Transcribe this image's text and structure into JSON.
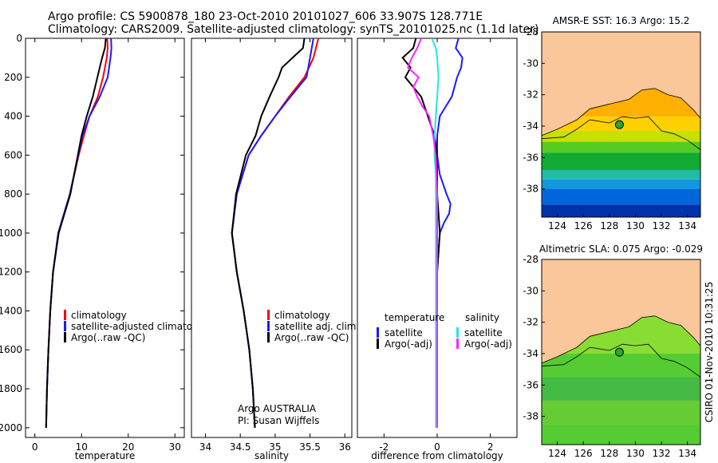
{
  "header": {
    "line1": "Argo profile: CS 5900878_180 23-Oct-2010 20101027_606 33.907S 128.771E",
    "line2": "Climatology: CARS2009. Satellite-adjusted climatology: synTS_20101025.nc (1.1d later)"
  },
  "footer_stamp": "CSIRO 01-Nov-2010 10:31:25",
  "colors": {
    "climatology": "#ff0000",
    "satellite": "#1a1aff",
    "argo": "#000000",
    "salinity_satellite": "#22e5e5",
    "salinity_argo": "#ff22ff",
    "land": "#f9c79a",
    "marker": "#22aa33"
  },
  "chart_data": [
    {
      "type": "line",
      "xlabel": "temperature",
      "ylabel": "",
      "xlim": [
        -2,
        32
      ],
      "ylim": [
        2050,
        0
      ],
      "xticks": [
        0,
        10,
        20,
        30
      ],
      "yticks": [
        0,
        200,
        400,
        600,
        800,
        1000,
        1200,
        1400,
        1600,
        1800,
        2000
      ],
      "legend_position": "bottom-right",
      "annotation": "",
      "series": [
        {
          "name": "climatology",
          "color": "#ff0000",
          "y": [
            0,
            50,
            100,
            200,
            300,
            400,
            500,
            600,
            800,
            1000,
            1200,
            1400,
            1600,
            1800,
            2000
          ],
          "x": [
            15.5,
            15.6,
            15.4,
            14.6,
            13.5,
            11.7,
            10.5,
            9.4,
            7.5,
            5.0,
            3.9,
            3.3,
            2.9,
            2.6,
            2.4
          ]
        },
        {
          "name": "satellite-adjusted climatology",
          "color": "#1a1aff",
          "y": [
            0,
            50,
            100,
            200,
            300,
            400,
            500,
            600,
            800,
            1000,
            1200,
            1400,
            1600,
            1800,
            2000
          ],
          "x": [
            16.3,
            16.4,
            16.2,
            15.6,
            13.9,
            11.7,
            10.2,
            9.3,
            7.5,
            5.0,
            3.9,
            3.3,
            2.9,
            2.6,
            2.4
          ]
        },
        {
          "name": "Argo(..raw -QC)",
          "color": "#000000",
          "y": [
            0,
            50,
            100,
            200,
            300,
            400,
            500,
            600,
            800,
            1000,
            1200,
            1400,
            1600,
            1800,
            2000
          ],
          "x": [
            15.2,
            15.0,
            14.4,
            13.4,
            12.4,
            11.1,
            10.0,
            9.2,
            7.6,
            5.1,
            3.9,
            3.3,
            2.9,
            2.6,
            2.4
          ]
        }
      ]
    },
    {
      "type": "line",
      "xlabel": "salinity",
      "ylabel": "",
      "xlim": [
        33.8,
        36.1
      ],
      "ylim": [
        2050,
        0
      ],
      "xticks": [
        34,
        34.5,
        35,
        35.5,
        36
      ],
      "yticks": [],
      "legend_position": "bottom-right",
      "annotation_lines": [
        "Argo AUSTRALIA",
        "PI: Susan Wijffels"
      ],
      "series": [
        {
          "name": "climatology",
          "color": "#ff0000",
          "y": [
            0,
            100,
            200,
            300,
            400,
            500,
            600,
            800,
            1000,
            1200,
            1400,
            1600,
            1800,
            2000
          ],
          "x": [
            35.62,
            35.55,
            35.42,
            35.2,
            35.0,
            34.8,
            34.62,
            34.45,
            34.38,
            34.45,
            34.55,
            34.63,
            34.68,
            34.71
          ]
        },
        {
          "name": "satellite adj. clim.",
          "color": "#1a1aff",
          "y": [
            0,
            100,
            200,
            300,
            400,
            500,
            600,
            800,
            1000,
            1200,
            1400,
            1600,
            1800,
            2000
          ],
          "x": [
            35.55,
            35.5,
            35.45,
            35.22,
            35.0,
            34.8,
            34.62,
            34.45,
            34.38,
            34.45,
            34.55,
            34.63,
            34.68,
            34.71
          ]
        },
        {
          "name": "Argo(..raw -QC)",
          "color": "#000000",
          "y": [
            0,
            50,
            100,
            150,
            200,
            300,
            400,
            500,
            600,
            800,
            1000,
            1200,
            1400,
            1600,
            1800,
            2000
          ],
          "x": [
            35.42,
            35.4,
            35.25,
            35.1,
            35.05,
            34.92,
            34.8,
            34.72,
            34.58,
            34.44,
            34.38,
            34.45,
            34.55,
            34.63,
            34.68,
            34.71
          ]
        }
      ]
    },
    {
      "type": "line",
      "xlabel": "difference from climatology",
      "ylabel": "",
      "xlim": [
        -3,
        3
      ],
      "ylim": [
        2050,
        0
      ],
      "xticks": [
        -2,
        0,
        2
      ],
      "yticks": [],
      "legend_position": "bottom",
      "legend_groups": [
        "temperature",
        "salinity"
      ],
      "series": [
        {
          "name": "satellite",
          "group": "temperature",
          "color": "#1a1aff",
          "y": [
            0,
            50,
            100,
            150,
            200,
            300,
            400,
            500,
            600,
            700,
            800,
            850,
            900,
            950,
            1000,
            1200,
            1400,
            1600,
            1800,
            2000
          ],
          "x": [
            0.8,
            0.7,
            0.95,
            0.9,
            0.75,
            0.55,
            0.1,
            0.0,
            0.0,
            0.1,
            0.35,
            0.5,
            0.45,
            0.25,
            0.1,
            0.0,
            0.0,
            0.0,
            0.0,
            0.0
          ]
        },
        {
          "name": "Argo(-adj)",
          "group": "temperature",
          "color": "#000000",
          "y": [
            0,
            50,
            100,
            150,
            200,
            250,
            300,
            400,
            500,
            600,
            700,
            800,
            900,
            1000,
            1200,
            1400,
            1600,
            1800,
            2000
          ],
          "x": [
            -0.8,
            -0.9,
            -1.3,
            -1.0,
            -1.2,
            -0.9,
            -0.6,
            -0.35,
            -0.1,
            0.0,
            0.0,
            0.0,
            0.05,
            0.1,
            0.0,
            0.0,
            0.0,
            0.0,
            0.0
          ]
        },
        {
          "name": "satellite",
          "group": "salinity",
          "color": "#22e5e5",
          "y": [
            0,
            50,
            100,
            200,
            300,
            400,
            500,
            600,
            700,
            800,
            900,
            1000,
            1200,
            1400,
            1600,
            1800,
            2000
          ],
          "x": [
            -0.2,
            -0.05,
            0.0,
            0.05,
            0.0,
            -0.05,
            -0.1,
            -0.1,
            -0.05,
            -0.05,
            -0.05,
            -0.05,
            -0.05,
            -0.05,
            -0.05,
            -0.05,
            -0.05
          ]
        },
        {
          "name": "Argo(-adj)",
          "group": "salinity",
          "color": "#ff22ff",
          "y": [
            0,
            50,
            100,
            150,
            200,
            250,
            300,
            350,
            400,
            500,
            600,
            800,
            1000,
            1200,
            1400,
            1600,
            1800,
            2000
          ],
          "x": [
            -0.6,
            -0.75,
            -0.95,
            -1.1,
            -0.7,
            -0.9,
            -0.75,
            -0.55,
            -0.3,
            -0.15,
            -0.05,
            0.0,
            0.0,
            0.0,
            0.0,
            0.0,
            0.0,
            0.0
          ]
        }
      ]
    },
    {
      "type": "heatmap",
      "title": "AMSR-E SST: 16.3 Argo: 15.2",
      "xlim": [
        122.8,
        135.0
      ],
      "ylim": [
        -39.8,
        -28.0
      ],
      "xticks": [
        124,
        126,
        128,
        130,
        132,
        134
      ],
      "yticks": [
        -28,
        -30,
        -32,
        -34,
        -36,
        -38
      ],
      "coastline": [
        [
          122.8,
          -34.6
        ],
        [
          124.0,
          -34.2
        ],
        [
          125.5,
          -33.6
        ],
        [
          126.5,
          -32.9
        ],
        [
          128.0,
          -32.6
        ],
        [
          129.5,
          -32.3
        ],
        [
          130.5,
          -31.7
        ],
        [
          131.5,
          -31.6
        ],
        [
          132.5,
          -32.0
        ],
        [
          133.5,
          -32.2
        ],
        [
          134.5,
          -33.0
        ],
        [
          135.0,
          -33.5
        ]
      ],
      "contour": [
        [
          122.8,
          -34.8
        ],
        [
          124.5,
          -34.7
        ],
        [
          125.5,
          -34.2
        ],
        [
          126.5,
          -33.6
        ],
        [
          128.0,
          -33.8
        ],
        [
          129.0,
          -33.4
        ],
        [
          130.0,
          -33.5
        ],
        [
          131.0,
          -33.4
        ],
        [
          132.0,
          -34.3
        ],
        [
          133.0,
          -34.5
        ],
        [
          134.0,
          -34.9
        ],
        [
          135.0,
          -35.5
        ]
      ],
      "argo_marker": [
        128.771,
        -33.907
      ],
      "color_bands": [
        {
          "lat_from": -28.0,
          "lat_to": -33.4,
          "color": "#ffb000"
        },
        {
          "lat_from": -33.4,
          "lat_to": -34.3,
          "color": "#ffd000"
        },
        {
          "lat_from": -34.3,
          "lat_to": -35.0,
          "color": "#c8e000"
        },
        {
          "lat_from": -35.0,
          "lat_to": -35.7,
          "color": "#55cc22"
        },
        {
          "lat_from": -35.7,
          "lat_to": -36.8,
          "color": "#11aa33"
        },
        {
          "lat_from": -36.8,
          "lat_to": -37.4,
          "color": "#22bbaa"
        },
        {
          "lat_from": -37.4,
          "lat_to": -38.0,
          "color": "#1199dd"
        },
        {
          "lat_from": -38.0,
          "lat_to": -39.0,
          "color": "#0066dd"
        },
        {
          "lat_from": -39.0,
          "lat_to": -39.8,
          "color": "#0033aa"
        }
      ]
    },
    {
      "type": "heatmap",
      "title": "Altimetric SLA: 0.075 Argo: -0.029",
      "xlim": [
        122.8,
        135.0
      ],
      "ylim": [
        -39.8,
        -28.0
      ],
      "xticks": [
        124,
        126,
        128,
        130,
        132,
        134
      ],
      "yticks": [
        -28,
        -30,
        -32,
        -34,
        -36,
        -38
      ],
      "coastline": [
        [
          122.8,
          -34.6
        ],
        [
          124.0,
          -34.2
        ],
        [
          125.5,
          -33.6
        ],
        [
          126.5,
          -32.9
        ],
        [
          128.0,
          -32.6
        ],
        [
          129.5,
          -32.3
        ],
        [
          130.5,
          -31.7
        ],
        [
          131.5,
          -31.6
        ],
        [
          132.5,
          -32.0
        ],
        [
          133.5,
          -32.2
        ],
        [
          134.5,
          -33.0
        ],
        [
          135.0,
          -33.5
        ]
      ],
      "contour": [
        [
          122.8,
          -34.8
        ],
        [
          124.5,
          -34.7
        ],
        [
          125.5,
          -34.2
        ],
        [
          126.5,
          -33.6
        ],
        [
          128.0,
          -33.8
        ],
        [
          129.0,
          -33.4
        ],
        [
          130.0,
          -33.5
        ],
        [
          131.0,
          -33.4
        ],
        [
          132.0,
          -34.3
        ],
        [
          133.0,
          -34.5
        ],
        [
          134.0,
          -34.9
        ],
        [
          135.0,
          -35.5
        ]
      ],
      "argo_marker": [
        128.771,
        -33.907
      ],
      "color_bands": [
        {
          "lat_from": -28.0,
          "lat_to": -34.0,
          "color": "#88dd33"
        },
        {
          "lat_from": -34.0,
          "lat_to": -35.5,
          "color": "#55cc33"
        },
        {
          "lat_from": -35.5,
          "lat_to": -37.0,
          "color": "#44bb44"
        },
        {
          "lat_from": -37.0,
          "lat_to": -38.5,
          "color": "#66cc33"
        },
        {
          "lat_from": -38.5,
          "lat_to": -39.8,
          "color": "#55cc33"
        }
      ]
    }
  ]
}
